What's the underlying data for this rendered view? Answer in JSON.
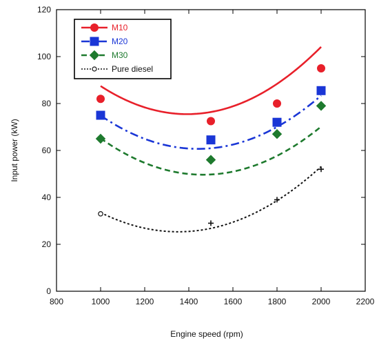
{
  "chart_data": {
    "type": "line",
    "xlabel": "Engine speed (rpm)",
    "ylabel": "Input power (kW)",
    "xlim": [
      800,
      2200
    ],
    "ylim": [
      0,
      120
    ],
    "xticks": [
      800,
      1000,
      1200,
      1400,
      1600,
      1800,
      2000,
      2200
    ],
    "yticks": [
      0,
      20,
      40,
      60,
      80,
      100,
      120
    ],
    "grid": false,
    "legend_position": "top-left",
    "series": [
      {
        "name": "M10",
        "color": "#e8202a",
        "marker": "circle",
        "line_style": "solid",
        "points": [
          [
            1000,
            82
          ],
          [
            1500,
            72.5
          ],
          [
            1800,
            80
          ],
          [
            2000,
            95
          ]
        ],
        "fit_coeffs": [
          226.14,
          -0.21638,
          7.769e-05
        ]
      },
      {
        "name": "M20",
        "color": "#1a36d6",
        "marker": "square",
        "line_style": "dashdot",
        "points": [
          [
            1000,
            75
          ],
          [
            1500,
            64.5
          ],
          [
            1800,
            72
          ],
          [
            2000,
            85.5
          ]
        ],
        "fit_coeffs": [
          212.13,
          -0.21009,
          7.286e-05
        ]
      },
      {
        "name": "M30",
        "color": "#1e7a2e",
        "marker": "diamond",
        "line_style": "dashed",
        "points": [
          [
            1000,
            65
          ],
          [
            1500,
            56
          ],
          [
            1800,
            67
          ],
          [
            2000,
            79
          ]
        ],
        "fit_coeffs": [
          203.5,
          -0.21,
          7.1667e-05
        ]
      },
      {
        "name": "Pure diesel",
        "color": "#111111",
        "marker": "plus",
        "line_style": "dotted",
        "points": [
          [
            1000,
            33
          ],
          [
            1500,
            29
          ],
          [
            1800,
            39
          ],
          [
            2000,
            52
          ]
        ],
        "fit_coeffs": [
          146.23,
          -0.17885,
          6.615e-05
        ]
      }
    ]
  }
}
